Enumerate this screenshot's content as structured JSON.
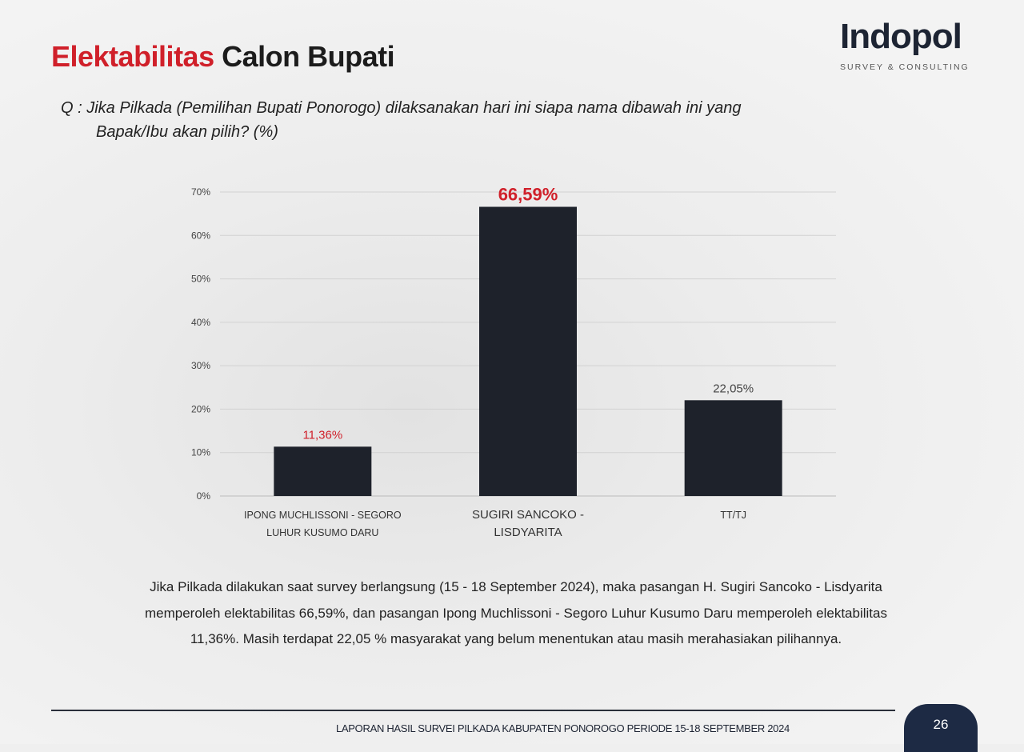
{
  "header": {
    "title_red": "Elektabilitas",
    "title_dark": "Calon Bupati"
  },
  "logo": {
    "word": "Indopol",
    "subtitle": "SURVEY & CONSULTING"
  },
  "question": {
    "line1": "Q :  Jika Pilkada (Pemilihan Bupati Ponorogo) dilaksanakan hari ini siapa nama dibawah ini yang",
    "line2": "Bapak/Ibu akan pilih? (%)"
  },
  "chart_data": {
    "type": "bar",
    "categories": [
      "IPONG MUCHLISSONI - SEGORO LUHUR KUSUMO DARU",
      "SUGIRI SANCOKO - LISDYARITA",
      "TT/TJ"
    ],
    "category_lines": [
      [
        "IPONG MUCHLISSONI - SEGORO",
        "LUHUR KUSUMO DARU"
      ],
      [
        "SUGIRI SANCOKO -",
        "LISDYARITA"
      ],
      [
        "TT/TJ"
      ]
    ],
    "values": [
      11.36,
      66.59,
      22.05
    ],
    "data_labels": [
      "11,36%",
      "66,59%",
      "22,05%"
    ],
    "label_colors": [
      "#d0202a",
      "#d0202a",
      "#444444"
    ],
    "bar_color": "#1e222b",
    "yticks": [
      "0%",
      "10%",
      "20%",
      "30%",
      "40%",
      "50%",
      "60%",
      "70%"
    ],
    "ylim": [
      0,
      70
    ],
    "grid": true,
    "xlabel": "",
    "ylabel": ""
  },
  "summary": "Jika Pilkada dilakukan saat survey berlangsung (15 - 18 September 2024), maka pasangan H. Sugiri Sancoko - Lisdyarita memperoleh elektabilitas 66,59%, dan pasangan Ipong Muchlissoni - Segoro Luhur Kusumo Daru memperoleh elektabilitas 11,36%. Masih terdapat 22,05 % masyarakat yang belum menentukan atau masih merahasiakan pilihannya.",
  "footer": {
    "text": "LAPORAN HASIL SURVEI PILKADA KABUPATEN PONOROGO PERIODE 15-18 SEPTEMBER 2024",
    "page": "26"
  }
}
